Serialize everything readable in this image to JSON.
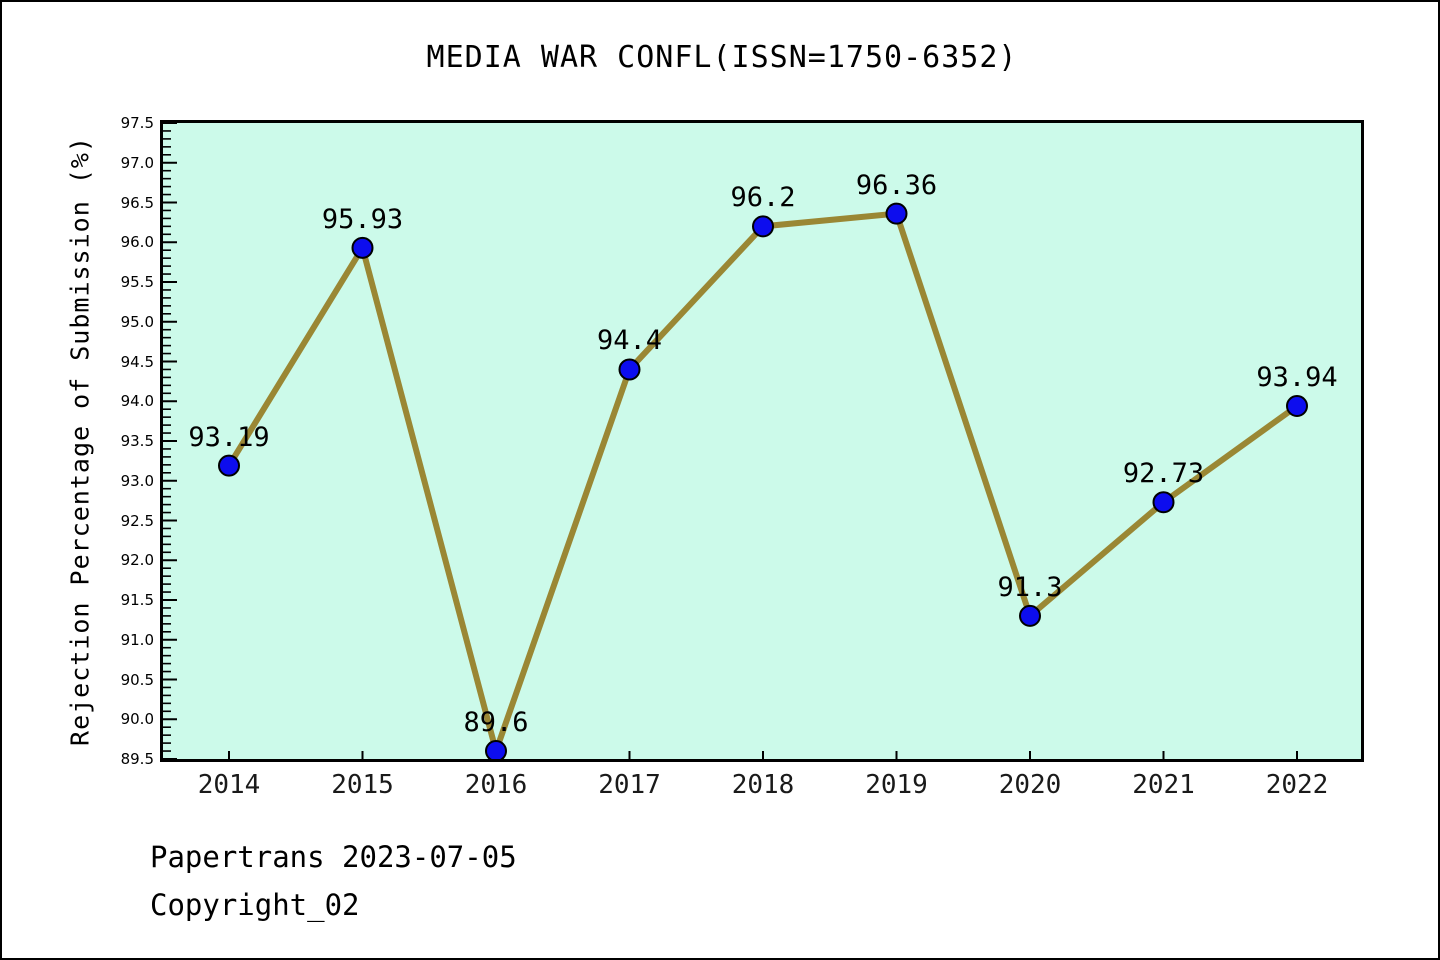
{
  "chart_data": {
    "type": "line",
    "title": "MEDIA WAR CONFL(ISSN=1750-6352)",
    "xlabel": "",
    "ylabel": "Rejection Percentage of Submission (%)",
    "categories": [
      "2014",
      "2015",
      "2016",
      "2017",
      "2018",
      "2019",
      "2020",
      "2021",
      "2022"
    ],
    "series": [
      {
        "name": "Rejection Percentage of Submission",
        "values": [
          93.19,
          95.93,
          89.6,
          94.4,
          96.2,
          96.36,
          91.3,
          92.73,
          93.94
        ]
      }
    ],
    "point_labels": [
      "93.19",
      "95.93",
      "89.6",
      "94.4",
      "96.2",
      "96.36",
      "91.3",
      "92.73",
      "93.94"
    ],
    "ylim": [
      89.5,
      97.5
    ],
    "y_major_step": 0.5,
    "y_minor_step": 0.1,
    "y_tick_labels": [
      "89.5",
      "90.0",
      "90.5",
      "91.0",
      "91.5",
      "92.0",
      "92.5",
      "93.0",
      "93.5",
      "94.0",
      "94.5",
      "95.0",
      "95.5",
      "96.0",
      "96.5",
      "97.0",
      "97.5"
    ],
    "grid": "off",
    "legend": "none",
    "colors": {
      "plot_background": "#ccfaea",
      "line": "#9a8734",
      "marker_fill": "#0d0dee",
      "marker_edge": "#000000",
      "axis": "#000000",
      "text": "#000000"
    }
  },
  "footer": {
    "line1": "Papertrans 2023-07-05",
    "line2": "Copyright_02"
  }
}
